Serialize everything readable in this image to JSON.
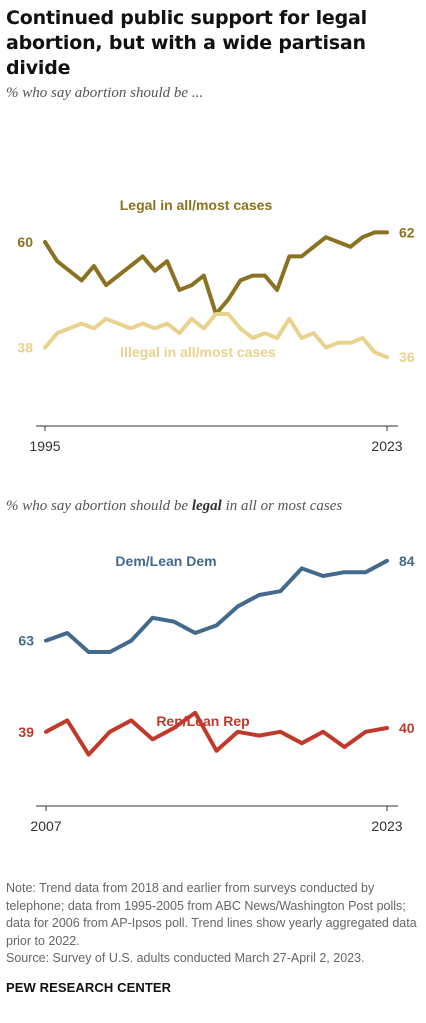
{
  "title": "Continued public support for legal abortion, but with a wide partisan divide",
  "chart_data": [
    {
      "type": "line",
      "subtitle": "% who say abortion should be ...",
      "x_tick_labels": [
        "1995",
        "2023"
      ],
      "ylim": [
        0,
        100
      ],
      "grid": false,
      "colors": {
        "legal": "#8a7220",
        "illegal": "#e8d28e",
        "axis": "#333333"
      },
      "series": [
        {
          "name": "Legal in all/most cases",
          "x": [
            1995,
            1996,
            1997,
            1998,
            1999,
            2000,
            2001,
            2002,
            2003,
            2004,
            2005,
            2006,
            2007,
            2008,
            2009,
            2010,
            2011,
            2012,
            2013,
            2014,
            2015,
            2016,
            2017,
            2018,
            2019,
            2020,
            2021,
            2022,
            2023
          ],
          "values": [
            60,
            56,
            54,
            52,
            55,
            51,
            53,
            55,
            57,
            54,
            56,
            50,
            51,
            53,
            45,
            48,
            52,
            53,
            53,
            50,
            57,
            57,
            59,
            61,
            60,
            59,
            61,
            62,
            62
          ],
          "start_label": "60",
          "end_label": "62"
        },
        {
          "name": "Illegal in all/most cases",
          "x": [
            1995,
            1996,
            1997,
            1998,
            1999,
            2000,
            2001,
            2002,
            2003,
            2004,
            2005,
            2006,
            2007,
            2008,
            2009,
            2010,
            2011,
            2012,
            2013,
            2014,
            2015,
            2016,
            2017,
            2018,
            2019,
            2020,
            2021,
            2022,
            2023
          ],
          "values": [
            38,
            41,
            42,
            43,
            42,
            44,
            43,
            42,
            43,
            42,
            43,
            41,
            44,
            42,
            45,
            45,
            42,
            40,
            41,
            40,
            44,
            40,
            41,
            38,
            39,
            39,
            40,
            37,
            36
          ],
          "start_label": "38",
          "end_label": "36"
        }
      ]
    },
    {
      "type": "line",
      "subtitle_parts": [
        "% who say abortion should be ",
        "legal",
        " in all or most cases"
      ],
      "x_tick_labels": [
        "2007",
        "2023"
      ],
      "ylim": [
        0,
        100
      ],
      "grid": false,
      "colors": {
        "dem": "#436a8c",
        "rep": "#c0392b",
        "axis": "#333333"
      },
      "series": [
        {
          "name": "Dem/Lean Dem",
          "x": [
            2007,
            2008,
            2009,
            2010,
            2011,
            2012,
            2013,
            2014,
            2015,
            2016,
            2017,
            2018,
            2019,
            2020,
            2021,
            2022,
            2023
          ],
          "values": [
            63,
            65,
            60,
            60,
            63,
            69,
            68,
            65,
            67,
            72,
            75,
            76,
            82,
            80,
            81,
            81,
            84
          ],
          "start_label": "63",
          "end_label": "84"
        },
        {
          "name": "Rep/Lean Rep",
          "x": [
            2007,
            2008,
            2009,
            2010,
            2011,
            2012,
            2013,
            2014,
            2015,
            2016,
            2017,
            2018,
            2019,
            2020,
            2021,
            2022,
            2023
          ],
          "values": [
            39,
            42,
            33,
            39,
            42,
            37,
            40,
            44,
            34,
            39,
            38,
            39,
            36,
            39,
            35,
            39,
            40
          ],
          "start_label": "39",
          "end_label": "40"
        }
      ]
    }
  ],
  "note": "Note: Trend data from 2018 and earlier from surveys conducted by telephone; data from 1995-2005 from ABC News/Washington Post polls; data for 2006 from AP-Ipsos poll. Trend lines show yearly aggregated data prior to 2022.",
  "source": "Source: Survey of U.S. adults conducted March 27-April 2, 2023.",
  "brand": "PEW RESEARCH CENTER"
}
